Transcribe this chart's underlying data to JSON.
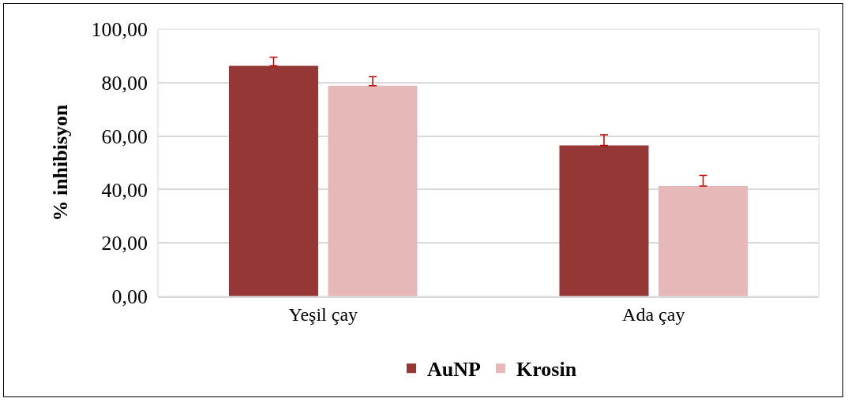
{
  "chart_data": {
    "type": "bar",
    "ylabel": "% inhibisyon",
    "categories": [
      "Yeşil çay",
      "Ada çay"
    ],
    "series": [
      {
        "name": "AuNP",
        "color": "#953735",
        "values": [
          86.3,
          56.5
        ],
        "errors": [
          [
            86.3,
            89.5
          ],
          [
            56.5,
            60.5
          ]
        ]
      },
      {
        "name": "Krosin",
        "color": "#e6b9b8",
        "values": [
          78.8,
          41.3
        ],
        "errors": [
          [
            78.8,
            82.2
          ],
          [
            41.3,
            45.3
          ]
        ]
      }
    ],
    "ylim": [
      0,
      100
    ],
    "yticks": [
      {
        "value": 0,
        "label": "0,00"
      },
      {
        "value": 20,
        "label": "20,00"
      },
      {
        "value": 40,
        "label": "40,00"
      },
      {
        "value": 60,
        "label": "60,00"
      },
      {
        "value": 80,
        "label": "80,00"
      },
      {
        "value": 100,
        "label": "100,00"
      }
    ],
    "grid": "y",
    "legend": "bottom"
  }
}
